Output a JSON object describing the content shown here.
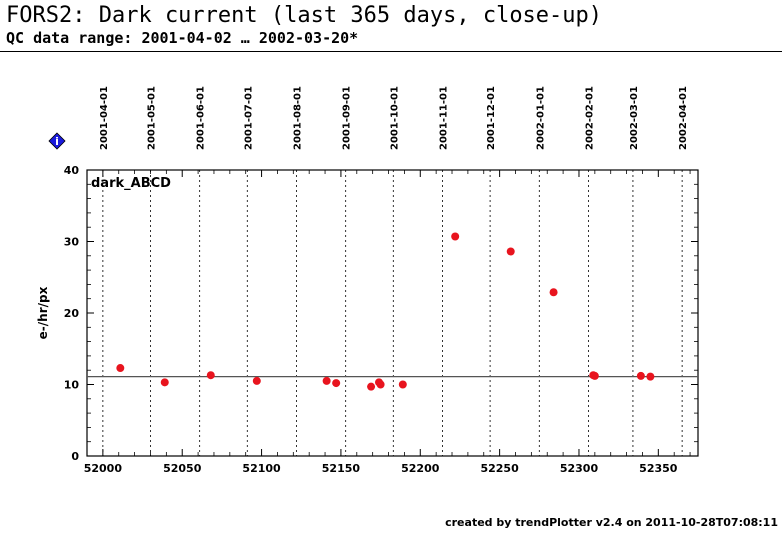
{
  "header": {
    "title": "FORS2: Dark current (last 365 days, close-up)",
    "subtitle": "QC data range: 2001-04-02 … 2002-03-20*"
  },
  "footer": {
    "text": "created by trendPlotter v2.4 on 2011-10-28T07:08:11"
  },
  "info_icon": {
    "label": "i",
    "color": "#1a1adc"
  },
  "chart_data": {
    "type": "scatter",
    "panel_label": "dark_ABCD",
    "ylabel": "e-/hr/px",
    "xlabel": "",
    "xlim": [
      51990,
      52375
    ],
    "ylim": [
      0,
      40
    ],
    "x_ticks": [
      52000,
      52050,
      52100,
      52150,
      52200,
      52250,
      52300,
      52350
    ],
    "y_ticks": [
      0,
      10,
      20,
      30,
      40
    ],
    "grid": "vertical dotted lines at month starts",
    "month_markers": [
      {
        "label": "2001-04-01",
        "mjd": 52000
      },
      {
        "label": "2001-05-01",
        "mjd": 52030
      },
      {
        "label": "2001-06-01",
        "mjd": 52061
      },
      {
        "label": "2001-07-01",
        "mjd": 52091
      },
      {
        "label": "2001-08-01",
        "mjd": 52122
      },
      {
        "label": "2001-09-01",
        "mjd": 52153
      },
      {
        "label": "2001-10-01",
        "mjd": 52183
      },
      {
        "label": "2001-11-01",
        "mjd": 52214
      },
      {
        "label": "2001-12-01",
        "mjd": 52244
      },
      {
        "label": "2002-01-01",
        "mjd": 52275
      },
      {
        "label": "2002-02-01",
        "mjd": 52306
      },
      {
        "label": "2002-03-01",
        "mjd": 52334
      },
      {
        "label": "2002-04-01",
        "mjd": 52365
      }
    ],
    "reference_line": 11.1,
    "point_color": "#e8141e",
    "series": [
      {
        "points": [
          {
            "x": 52011,
            "y": 12.3
          },
          {
            "x": 52039,
            "y": 10.3
          },
          {
            "x": 52068,
            "y": 11.3
          },
          {
            "x": 52097,
            "y": 10.5
          },
          {
            "x": 52141,
            "y": 10.5
          },
          {
            "x": 52147,
            "y": 10.2
          },
          {
            "x": 52169,
            "y": 9.7
          },
          {
            "x": 52174,
            "y": 10.3
          },
          {
            "x": 52175,
            "y": 10.0
          },
          {
            "x": 52189,
            "y": 10.0
          },
          {
            "x": 52222,
            "y": 30.7
          },
          {
            "x": 52257,
            "y": 28.6
          },
          {
            "x": 52284,
            "y": 22.9
          },
          {
            "x": 52309,
            "y": 11.3
          },
          {
            "x": 52310,
            "y": 11.2
          },
          {
            "x": 52339,
            "y": 11.2
          },
          {
            "x": 52345,
            "y": 11.1
          }
        ]
      }
    ]
  }
}
